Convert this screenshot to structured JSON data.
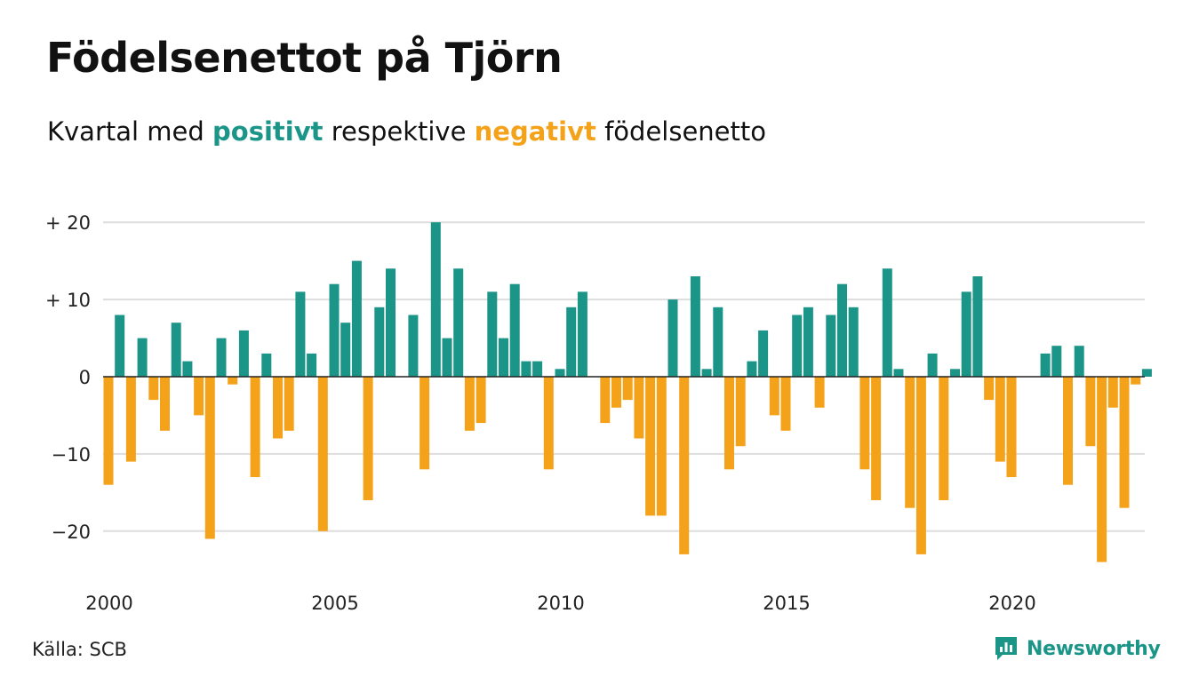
{
  "header": {
    "title": "Födelsenettot på Tjörn",
    "subtitle_prefix": "Kvartal med",
    "subtitle_positive": "positivt",
    "subtitle_middle": "respektive",
    "subtitle_negative": "negativt",
    "subtitle_suffix": "födelsenetto"
  },
  "footer": {
    "source": "Källa: SCB",
    "brand": "Newsworthy"
  },
  "colors": {
    "positive": "#1a9588",
    "negative": "#f5a21b",
    "grid": "#dddddd",
    "zero_line": "#222222"
  },
  "icons": {
    "brand_logo": "bar-chart-speech-bubble-icon"
  },
  "chart_data": {
    "type": "bar",
    "x_start": "2000 Q1",
    "x_end": "2023 Q1",
    "quarters_per_year": 4,
    "xticks": [
      2000,
      2005,
      2010,
      2015,
      2020
    ],
    "xtick_labels": [
      "2000",
      "2005",
      "2010",
      "2015",
      "2020"
    ],
    "yticks": [
      20,
      10,
      0,
      -10,
      -20
    ],
    "ytick_labels": [
      "+ 20",
      "+ 10",
      "0",
      "−10",
      "−20"
    ],
    "ylim": [
      -26,
      21
    ],
    "grid": true,
    "legend": "in subtitle",
    "values": [
      -14,
      8,
      -11,
      5,
      -3,
      -7,
      7,
      2,
      -5,
      -21,
      5,
      -1,
      6,
      -13,
      3,
      -8,
      -7,
      11,
      3,
      -20,
      12,
      7,
      15,
      -16,
      9,
      14,
      0,
      8,
      -12,
      20,
      5,
      14,
      -7,
      -6,
      11,
      5,
      12,
      2,
      2,
      -12,
      1,
      9,
      11,
      0,
      -6,
      -4,
      -3,
      -8,
      -18,
      -18,
      10,
      -23,
      13,
      1,
      9,
      -12,
      -9,
      2,
      6,
      -5,
      -7,
      8,
      9,
      -4,
      8,
      12,
      9,
      -12,
      -16,
      14,
      1,
      -17,
      -23,
      3,
      -16,
      1,
      11,
      13,
      -3,
      -11,
      -13,
      0,
      0,
      3,
      4,
      -14,
      4,
      -9,
      -24,
      -4,
      -17,
      -1,
      1
    ]
  }
}
